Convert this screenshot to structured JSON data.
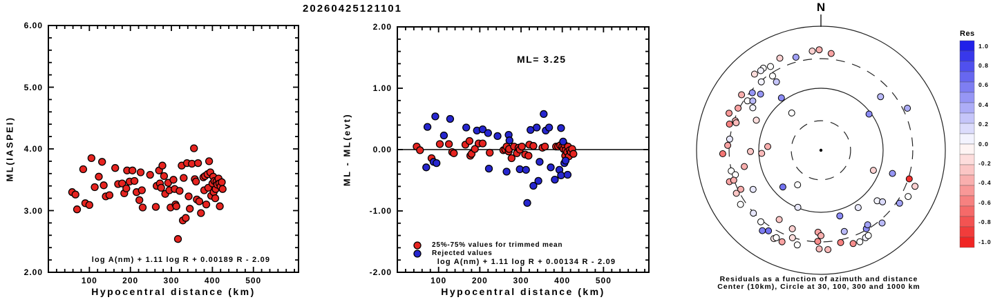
{
  "title": "20260425121101",
  "colors": {
    "red": "#e62420",
    "blue": "#2626cf",
    "axis": "#000000"
  },
  "chart_data": [
    {
      "type": "scatter",
      "panel": "left",
      "xlabel": "Hypocentral distance (km)",
      "ylabel": "ML(IASPEI)",
      "xlim": [
        0,
        610
      ],
      "ylim": [
        2,
        6
      ],
      "xticks": [
        100,
        200,
        300,
        400,
        500
      ],
      "xtick_labels": [
        "100",
        "200",
        "300",
        "400",
        "500"
      ],
      "yticks": [
        2,
        3,
        4,
        5,
        6
      ],
      "ytick_labels": [
        "2.00",
        "3.00",
        "4.00",
        "5.00",
        "6.00"
      ],
      "annotation": "log A(nm) + 1.11 log R + 0.00189 R - 2.09",
      "series": [
        {
          "name": "ML station values",
          "color": "#e62420",
          "points": [
            [
              58,
              3.3
            ],
            [
              66,
              3.26
            ],
            [
              70,
              3.02
            ],
            [
              85,
              3.67
            ],
            [
              90,
              3.12
            ],
            [
              100,
              3.09
            ],
            [
              105,
              3.85
            ],
            [
              113,
              3.38
            ],
            [
              123,
              3.55
            ],
            [
              131,
              3.79
            ],
            [
              135,
              3.41
            ],
            [
              140,
              3.23
            ],
            [
              149,
              3.25
            ],
            [
              163,
              3.69
            ],
            [
              170,
              3.43
            ],
            [
              180,
              3.44
            ],
            [
              185,
              3.28
            ],
            [
              190,
              3.36
            ],
            [
              192,
              3.65
            ],
            [
              198,
              3.47
            ],
            [
              205,
              3.65
            ],
            [
              210,
              3.48
            ],
            [
              215,
              3.3
            ],
            [
              222,
              3.17
            ],
            [
              225,
              3.62
            ],
            [
              228,
              3.33
            ],
            [
              230,
              3.05
            ],
            [
              248,
              3.58
            ],
            [
              262,
              3.06
            ],
            [
              264,
              3.4
            ],
            [
              270,
              3.65
            ],
            [
              272,
              3.44
            ],
            [
              275,
              3.37
            ],
            [
              278,
              3.73
            ],
            [
              282,
              3.56
            ],
            [
              285,
              3.27
            ],
            [
              292,
              3.45
            ],
            [
              295,
              3.33
            ],
            [
              298,
              3.05
            ],
            [
              305,
              3.5
            ],
            [
              308,
              3.35
            ],
            [
              310,
              3.1
            ],
            [
              312,
              3.07
            ],
            [
              316,
              2.54
            ],
            [
              320,
              3.32
            ],
            [
              325,
              3.73
            ],
            [
              328,
              2.84
            ],
            [
              330,
              3.53
            ],
            [
              335,
              2.88
            ],
            [
              338,
              3.77
            ],
            [
              342,
              3.23
            ],
            [
              345,
              3.03
            ],
            [
              350,
              3.76
            ],
            [
              355,
              4.01
            ],
            [
              357,
              3.51
            ],
            [
              360,
              3.47
            ],
            [
              362,
              3.18
            ],
            [
              365,
              3.77
            ],
            [
              368,
              3.15
            ],
            [
              372,
              2.96
            ],
            [
              378,
              3.54
            ],
            [
              380,
              3.33
            ],
            [
              382,
              3.56
            ],
            [
              385,
              3.1
            ],
            [
              388,
              3.59
            ],
            [
              390,
              3.37
            ],
            [
              392,
              3.8
            ],
            [
              395,
              3.62
            ],
            [
              397,
              3.24
            ],
            [
              400,
              3.44
            ],
            [
              402,
              3.55
            ],
            [
              403,
              3.3
            ],
            [
              405,
              3.48
            ],
            [
              407,
              3.2
            ],
            [
              408,
              3.35
            ],
            [
              410,
              3.47
            ],
            [
              412,
              3.42
            ],
            [
              415,
              3.52
            ],
            [
              417,
              3.44
            ],
            [
              418,
              3.07
            ],
            [
              420,
              3.39
            ],
            [
              423,
              3.46
            ],
            [
              425,
              3.35
            ]
          ]
        }
      ]
    },
    {
      "type": "scatter",
      "panel": "middle",
      "xlabel": "Hypocentral distance (km)",
      "ylabel": "ML - ML(evt)",
      "xlim": [
        0,
        610
      ],
      "ylim": [
        -2,
        2
      ],
      "xticks": [
        100,
        200,
        300,
        400,
        500
      ],
      "xtick_labels": [
        "100",
        "200",
        "300",
        "400",
        "500"
      ],
      "yticks": [
        -2,
        -1,
        0,
        1,
        2
      ],
      "ytick_labels": [
        "-2.00",
        "-1.00",
        "0.00",
        "1.00",
        "2.00"
      ],
      "ml_label": "ML= 3.25",
      "zero_line": true,
      "annotation": "log A(nm) + 1.11 log R + 0.00134 R - 2.09",
      "series": [
        {
          "name": "25%-75% values for trimmed mean",
          "color": "#e62420",
          "points": [
            [
              47,
              0.05
            ],
            [
              55,
              -0.01
            ],
            [
              83,
              -0.14
            ],
            [
              103,
              0.09
            ],
            [
              125,
              0.09
            ],
            [
              133,
              -0.04
            ],
            [
              137,
              -0.06
            ],
            [
              165,
              0.08
            ],
            [
              175,
              0.14
            ],
            [
              177,
              -0.1
            ],
            [
              180,
              -0.07
            ],
            [
              188,
              0.01
            ],
            [
              197,
              0.1
            ],
            [
              207,
              0.1
            ],
            [
              224,
              -0.05
            ],
            [
              257,
              -0.01
            ],
            [
              262,
              0.0
            ],
            [
              265,
              0.05
            ],
            [
              270,
              -0.03
            ],
            [
              271,
              0.01
            ],
            [
              277,
              -0.14
            ],
            [
              283,
              0.05
            ],
            [
              290,
              -0.06
            ],
            [
              294,
              0.03
            ],
            [
              297,
              0.0
            ],
            [
              302,
              0.05
            ],
            [
              310,
              -0.08
            ],
            [
              318,
              -0.1
            ],
            [
              320,
              0.08
            ],
            [
              330,
              0.06
            ],
            [
              352,
              0.03
            ],
            [
              358,
              0.05
            ],
            [
              385,
              0.05
            ],
            [
              390,
              0.05
            ],
            [
              395,
              0.07
            ],
            [
              400,
              0.05
            ],
            [
              403,
              0.01
            ],
            [
              405,
              0.08
            ],
            [
              407,
              -0.1
            ],
            [
              408,
              -0.01
            ],
            [
              412,
              -0.04
            ],
            [
              414,
              0.05
            ],
            [
              416,
              -0.11
            ],
            [
              418,
              -0.01
            ],
            [
              421,
              -0.04
            ],
            [
              424,
              0.01
            ],
            [
              427,
              -0.07
            ]
          ]
        },
        {
          "name": "Rejected values",
          "color": "#2626cf",
          "points": [
            [
              70,
              -0.29
            ],
            [
              73,
              0.37
            ],
            [
              88,
              -0.2
            ],
            [
              92,
              0.54
            ],
            [
              95,
              -0.22
            ],
            [
              113,
              0.23
            ],
            [
              128,
              0.5
            ],
            [
              167,
              0.36
            ],
            [
              193,
              0.31
            ],
            [
              207,
              0.33
            ],
            [
              220,
              0.27
            ],
            [
              222,
              -0.31
            ],
            [
              243,
              0.22
            ],
            [
              265,
              -0.36
            ],
            [
              270,
              0.24
            ],
            [
              272,
              0.15
            ],
            [
              297,
              -0.32
            ],
            [
              312,
              -0.33
            ],
            [
              315,
              -0.87
            ],
            [
              323,
              0.32
            ],
            [
              330,
              -0.59
            ],
            [
              338,
              0.36
            ],
            [
              342,
              -0.51
            ],
            [
              345,
              -0.2
            ],
            [
              355,
              0.58
            ],
            [
              360,
              0.31
            ],
            [
              368,
              0.36
            ],
            [
              372,
              -0.29
            ],
            [
              382,
              -0.49
            ],
            [
              393,
              -0.33
            ],
            [
              397,
              0.35
            ],
            [
              397,
              -0.42
            ],
            [
              402,
              0.13
            ],
            [
              405,
              -0.22
            ],
            [
              408,
              -0.18
            ],
            [
              413,
              -0.41
            ]
          ]
        }
      ]
    },
    {
      "type": "polar-scatter",
      "panel": "right",
      "north_label": "N",
      "caption_line1": "Residuals as a function of azimuth and distance",
      "caption_line2": "Center (10km), Circle at 30, 100, 300 and 1000 km",
      "center_km": 10,
      "rings_km": [
        30,
        100,
        300,
        1000
      ],
      "dashed_rings_km": [
        30,
        300
      ],
      "points_format": [
        "azimuth_deg",
        "distance_km",
        "residual"
      ],
      "points": [
        [
          355,
          403,
          -0.2
        ],
        [
          359,
          417,
          -0.35
        ],
        [
          6,
          370,
          -0.4
        ],
        [
          345,
          357,
          0.4
        ],
        [
          336,
          422,
          -0.2
        ],
        [
          329,
          376,
          0
        ],
        [
          325,
          412,
          0
        ],
        [
          323,
          405,
          0.05
        ],
        [
          327,
          268,
          0
        ],
        [
          319,
          424,
          -0.15
        ],
        [
          319,
          290,
          0.05
        ],
        [
          327,
          206,
          0.25
        ],
        [
          310,
          276,
          0.45
        ],
        [
          313,
          213,
          0.45
        ],
        [
          305,
          362,
          -0.35
        ],
        [
          304,
          266,
          0
        ],
        [
          306,
          226,
          0.3
        ],
        [
          302,
          196,
          0.05
        ],
        [
          323,
          114,
          0.5
        ],
        [
          297,
          313,
          -0.4
        ],
        [
          292,
          393,
          -0.45
        ],
        [
          289,
          286,
          -0.3
        ],
        [
          286,
          339,
          -0.55
        ],
        [
          288,
          271,
          -0.3
        ],
        [
          295,
          140,
          -0.15
        ],
        [
          322,
          58,
          0
        ],
        [
          277,
          301,
          0.1
        ],
        [
          273,
          317,
          -0.4
        ],
        [
          269,
          136,
          -0.25
        ],
        [
          268,
          380,
          -0.6
        ],
        [
          274,
          72,
          -0.35
        ],
        [
          267,
          90,
          -0.3
        ],
        [
          258,
          182,
          -0.35
        ],
        [
          257,
          302,
          0
        ],
        [
          254,
          270,
          0
        ],
        [
          251,
          360,
          -0.4
        ],
        [
          251,
          304,
          -0.35
        ],
        [
          243,
          336,
          -0.25
        ],
        [
          244,
          272,
          -0.35
        ],
        [
          240,
          182,
          0.1
        ],
        [
          226,
          71,
          0.6
        ],
        [
          214,
          47,
          0
        ],
        [
          236,
          363,
          0
        ],
        [
          227,
          306,
          0.1
        ],
        [
          220,
          319,
          0
        ],
        [
          216,
          400,
          0.55
        ],
        [
          213,
          354,
          0.6
        ],
        [
          211,
          201,
          -0.25
        ],
        [
          208,
          409,
          -0.1
        ],
        [
          207,
          381,
          0
        ],
        [
          203,
          400,
          -0.4
        ],
        [
          200,
          222,
          -0.2
        ],
        [
          198,
          304,
          -0.15
        ],
        [
          194,
          373,
          0
        ],
        [
          182,
          210,
          -0.4
        ],
        [
          180,
          238,
          -0.35
        ],
        [
          182,
          295,
          -0.5
        ],
        [
          181,
          389,
          -0.3
        ],
        [
          176,
          403,
          -0.3
        ],
        [
          168,
          332,
          -0.55
        ],
        [
          161,
          389,
          -0.5
        ],
        [
          157,
          400,
          0
        ],
        [
          153,
          381,
          0.05
        ],
        [
          151,
          373,
          0
        ],
        [
          150,
          289,
          0.5
        ],
        [
          148,
          261,
          0.4
        ],
        [
          147,
          126,
          0.1
        ],
        [
          164,
          126,
          0.5
        ],
        [
          164,
          230,
          0.3
        ],
        [
          140,
          339,
          0.3
        ],
        [
          132,
          165,
          0.05
        ],
        [
          130,
          196,
          0.15
        ],
        [
          124,
          335,
          0.4
        ],
        [
          118,
          387,
          0
        ],
        [
          111,
          417,
          -0.2
        ],
        [
          111,
          80,
          -0.2
        ],
        [
          108,
          311,
          -0.9
        ],
        [
          108,
          162,
          0.45
        ],
        [
          202,
          98,
          0.1
        ],
        [
          64,
          352,
          0.35
        ],
        [
          53,
          93,
          0.5
        ],
        [
          48,
          195,
          0.3
        ]
      ]
    }
  ],
  "colorbar": {
    "title": "Res",
    "min": -1.0,
    "max": 1.0,
    "blocks": 20,
    "tick_labels": [
      "1.0",
      "0.8",
      "0.6",
      "0.4",
      "0.2",
      "0.0",
      "-0.2",
      "-0.4",
      "-0.6",
      "-0.8",
      "-1.0"
    ]
  }
}
